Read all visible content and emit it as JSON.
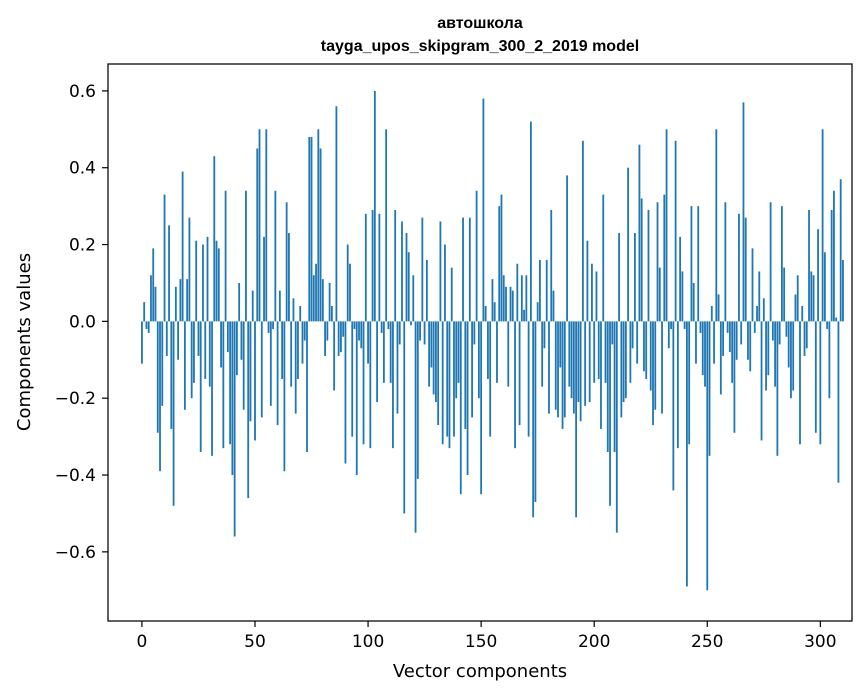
{
  "chart_data": {
    "type": "bar",
    "title_line1": "автошкола",
    "title_line2": "tayga_upos_skipgram_300_2_2019 model",
    "xlabel": "Vector components",
    "ylabel": "Components values",
    "xlim": [
      -15,
      314
    ],
    "ylim": [
      -0.78,
      0.67
    ],
    "xticks": [
      0,
      50,
      100,
      150,
      200,
      250,
      300
    ],
    "yticks": [
      -0.6,
      -0.4,
      -0.2,
      0.0,
      0.2,
      0.4,
      0.6
    ],
    "ytick_labels": [
      "−0.6",
      "−0.4",
      "−0.2",
      "0.0",
      "0.2",
      "0.4",
      "0.6"
    ],
    "bar_color": "#1f77b4",
    "values": [
      -0.11,
      0.05,
      -0.02,
      -0.03,
      0.12,
      0.19,
      0.09,
      -0.29,
      -0.39,
      -0.22,
      0.33,
      -0.09,
      0.25,
      -0.28,
      -0.48,
      0.09,
      -0.1,
      0.11,
      0.39,
      -0.23,
      0.11,
      0.27,
      -0.2,
      -0.16,
      0.21,
      -0.09,
      -0.34,
      0.2,
      -0.15,
      0.22,
      -0.17,
      -0.35,
      0.43,
      0.21,
      0.19,
      -0.12,
      -0.33,
      0.34,
      -0.08,
      -0.32,
      -0.4,
      -0.56,
      -0.14,
      0.1,
      -0.1,
      -0.23,
      0.34,
      -0.46,
      -0.26,
      0.08,
      -0.31,
      0.45,
      0.5,
      -0.25,
      0.22,
      0.5,
      -0.03,
      -0.22,
      -0.02,
      0.34,
      -0.27,
      0.08,
      -0.15,
      -0.39,
      0.31,
      0.23,
      -0.17,
      0.06,
      -0.24,
      -0.15,
      0.04,
      -0.11,
      -0.05,
      -0.34,
      0.48,
      0.48,
      0.12,
      0.15,
      0.5,
      0.45,
      0.11,
      -0.09,
      -0.05,
      0.1,
      0.04,
      -0.18,
      0.56,
      -0.09,
      -0.08,
      -0.04,
      -0.37,
      0.2,
      0.15,
      -0.3,
      -0.02,
      -0.4,
      -0.05,
      -0.07,
      -0.32,
      0.28,
      -0.11,
      -0.33,
      0.29,
      0.6,
      -0.21,
      0.28,
      -0.03,
      -0.16,
      0.5,
      -0.02,
      -0.16,
      -0.33,
      0.29,
      -0.24,
      -0.06,
      0.26,
      -0.5,
      0.23,
      0.18,
      -0.01,
      0.12,
      -0.55,
      -0.41,
      -0.05,
      0.27,
      -0.06,
      0.16,
      -0.17,
      -0.12,
      -0.19,
      -0.21,
      -0.27,
      0.26,
      -0.32,
      0.2,
      -0.3,
      -0.33,
      0.14,
      -0.3,
      -0.2,
      -0.16,
      -0.45,
      0.27,
      -0.28,
      -0.4,
      0.27,
      -0.25,
      -0.06,
      0.34,
      -0.2,
      -0.45,
      0.58,
      0.04,
      -0.15,
      -0.3,
      0.11,
      0.05,
      -0.16,
      0.3,
      0.33,
      0.12,
      0.09,
      -0.17,
      0.09,
      0.08,
      -0.33,
      0.15,
      -0.27,
      0.12,
      0.03,
      0.12,
      -0.3,
      0.52,
      -0.51,
      -0.47,
      0.05,
      0.16,
      -0.17,
      -0.07,
      0.16,
      -0.24,
      0.29,
      0.08,
      -0.23,
      -0.25,
      -0.12,
      -0.28,
      -0.25,
      0.38,
      -0.17,
      -0.2,
      -0.24,
      -0.51,
      -0.21,
      -0.26,
      0.47,
      -0.22,
      0.21,
      -0.21,
      0.15,
      -0.16,
      0.13,
      -0.15,
      -0.28,
      0.33,
      -0.16,
      -0.34,
      -0.48,
      -0.06,
      -0.34,
      -0.55,
      0.23,
      -0.25,
      -0.21,
      -0.2,
      0.4,
      -0.16,
      -0.07,
      0.23,
      -0.11,
      0.46,
      0.32,
      -0.13,
      -0.15,
      0.29,
      -0.18,
      -0.27,
      -0.23,
      0.31,
      0.14,
      -0.24,
      0.33,
      0.5,
      -0.07,
      -0.02,
      -0.44,
      0.47,
      -0.33,
      0.22,
      0.13,
      -0.02,
      -0.69,
      -0.32,
      0.3,
      0.1,
      -0.11,
      0.3,
      -0.03,
      -0.14,
      -0.17,
      -0.7,
      -0.35,
      0.04,
      -0.11,
      0.5,
      0.07,
      -0.19,
      -0.09,
      0.31,
      -0.03,
      -0.08,
      -0.16,
      -0.29,
      -0.1,
      0.28,
      -0.06,
      0.57,
      0.27,
      -0.1,
      -0.13,
      0.19,
      -0.03,
      0.04,
      0.13,
      -0.31,
      0.06,
      -0.18,
      -0.14,
      0.31,
      -0.05,
      -0.17,
      -0.35,
      -0.06,
      0.3,
      0.14,
      -0.04,
      -0.12,
      -0.2,
      -0.18,
      0.07,
      0.12,
      -0.32,
      0.04,
      -0.09,
      -0.07,
      0.29,
      0.13,
      0.12,
      -0.29,
      0.24,
      -0.32,
      0.5,
      0.18,
      -0.02,
      -0.2,
      0.29,
      0.34,
      0.01,
      -0.42,
      0.37,
      0.16
    ]
  }
}
